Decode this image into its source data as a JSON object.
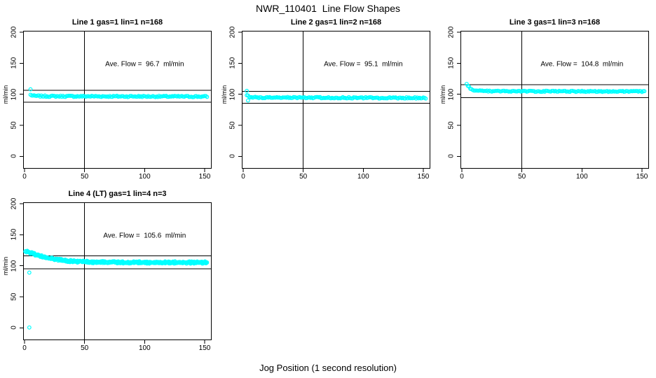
{
  "figure": {
    "title": "NWR_110401  Line Flow Shapes",
    "xlabel": "Jog Position (1 second resolution)"
  },
  "chart_data": {
    "type": "scatter",
    "title": "NWR_110401  Line Flow Shapes",
    "xlabel": "Jog Position (1 second resolution)",
    "ylabel": "ml/min",
    "x_ticks": [
      0,
      50,
      100,
      150
    ],
    "y_ticks": [
      0,
      50,
      100,
      150,
      200
    ],
    "xlim": [
      -2,
      156
    ],
    "ylim": [
      -20,
      205
    ],
    "grid": false,
    "marker": "open-circle",
    "marker_color": "#00ffff",
    "axis_color": "#000000",
    "background_color": "#ffffff",
    "vline_x": 50,
    "panels": [
      {
        "id": "line-1",
        "title": "Line 1 gas=1 lin=1 n=168",
        "ave_flow": 96.7,
        "annotation": "Ave. Flow =  96.7  ml/min",
        "n": 168,
        "ref_lines": [
          106.4,
          87.0
        ],
        "series_profile": [
          [
            5,
            99.0
          ],
          [
            8,
            97.2
          ],
          [
            20,
            96.8
          ],
          [
            152,
            96.3
          ]
        ],
        "jitter": 1.1,
        "runs": 1,
        "extra_points": [
          [
            5,
            108
          ]
        ]
      },
      {
        "id": "line-2",
        "title": "Line 2 gas=1 lin=2 n=168",
        "ave_flow": 95.1,
        "annotation": "Ave. Flow =  95.1  ml/min",
        "n": 168,
        "ref_lines": [
          104.6,
          85.6
        ],
        "series_profile": [
          [
            3,
            98.5
          ],
          [
            5,
            95.8
          ],
          [
            10,
            94.8
          ],
          [
            152,
            94.1
          ]
        ],
        "jitter": 1.1,
        "runs": 1,
        "extra_points": [
          [
            3,
            105.5
          ],
          [
            4,
            90.0
          ]
        ]
      },
      {
        "id": "line-3",
        "title": "Line 3 gas=1 lin=3 n=168",
        "ave_flow": 104.8,
        "annotation": "Ave. Flow =  104.8  ml/min",
        "n": 168,
        "ref_lines": [
          115.3,
          94.3
        ],
        "series_profile": [
          [
            4,
            117.0
          ],
          [
            5,
            113.5
          ],
          [
            7,
            109.5
          ],
          [
            10,
            106.8
          ],
          [
            15,
            105.4
          ],
          [
            25,
            104.9
          ],
          [
            152,
            104.4
          ]
        ],
        "jitter": 0.9,
        "runs": 1,
        "extra_points": []
      },
      {
        "id": "line-4",
        "title": "Line 4 (LT) gas=1 lin=4 n=3",
        "ave_flow": 105.6,
        "annotation": "Ave. Flow =  105.6  ml/min",
        "n": 3,
        "ref_lines": [
          116.2,
          95.0
        ],
        "series_profile": [
          [
            1,
            124.0
          ],
          [
            5,
            121.0
          ],
          [
            10,
            117.5
          ],
          [
            15,
            114.5
          ],
          [
            20,
            112.5
          ],
          [
            30,
            109.2
          ],
          [
            40,
            107.2
          ],
          [
            50,
            106.3
          ],
          [
            70,
            105.6
          ],
          [
            100,
            105.3
          ],
          [
            152,
            105.2
          ]
        ],
        "jitter": 1.3,
        "runs": 3,
        "extra_points": [
          [
            4,
            89.0
          ],
          [
            4,
            0.5
          ]
        ]
      }
    ]
  }
}
